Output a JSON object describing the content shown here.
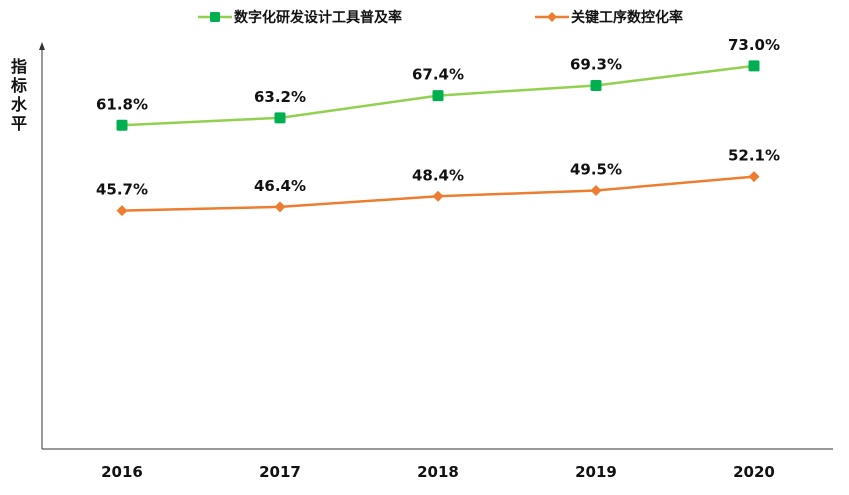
{
  "chart_data": {
    "type": "line",
    "categories": [
      "2016",
      "2017",
      "2018",
      "2019",
      "2020"
    ],
    "ylabel": "指标水平",
    "xlabel": "",
    "ylim": [
      30,
      76
    ],
    "grid": false,
    "legend_position": "top",
    "series": [
      {
        "name": "数字化研发设计工具普及率",
        "values": [
          61.8,
          63.2,
          67.4,
          69.3,
          73.0
        ],
        "labels": [
          "61.8%",
          "63.2%",
          "67.4%",
          "69.3%",
          "73.0%"
        ],
        "color": "#92D050",
        "marker_color": "#00B050",
        "marker": "square"
      },
      {
        "name": "关键工序数控化率",
        "values": [
          45.7,
          46.4,
          48.4,
          49.5,
          52.1
        ],
        "labels": [
          "45.7%",
          "46.4%",
          "48.4%",
          "49.5%",
          "52.1%"
        ],
        "color": "#ED7D31",
        "marker_color": "#ED7D31",
        "marker": "diamond"
      }
    ]
  }
}
